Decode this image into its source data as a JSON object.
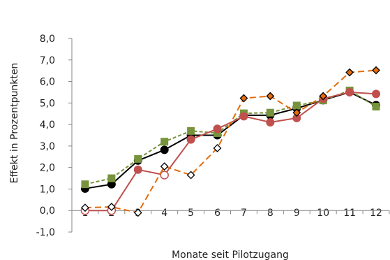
{
  "chart_data": {
    "type": "line",
    "xlabel": "Monate seit Pilotzugang",
    "ylabel": "Effekt in Prozentpunkten",
    "categories": [
      "1",
      "2",
      "3",
      "4",
      "5",
      "6",
      "7",
      "8",
      "9",
      "10",
      "11",
      "12"
    ],
    "yticks": [
      "-1,0",
      "0,0",
      "1,0",
      "2,0",
      "3,0",
      "4,0",
      "5,0",
      "6,0",
      "7,0",
      "8,0"
    ],
    "ylim": [
      -1,
      8
    ],
    "grid": false,
    "legend": "none",
    "series": [
      {
        "style": "solid",
        "marker": "filled-circle",
        "color": "#000000",
        "values": [
          1.02,
          1.22,
          2.32,
          2.82,
          3.5,
          3.5,
          4.43,
          4.43,
          4.75,
          5.13,
          5.5,
          4.9
        ]
      },
      {
        "style": "dashed",
        "marker": "filled-square",
        "color": "#77933c",
        "values": [
          1.22,
          1.5,
          2.4,
          3.2,
          3.7,
          3.6,
          4.52,
          4.55,
          4.88,
          5.12,
          5.58,
          4.83
        ]
      },
      {
        "style": "solid",
        "marker": "circle-mixed",
        "color": "#c0504d",
        "values": [
          0.0,
          0.0,
          1.9,
          1.65,
          3.3,
          3.8,
          4.38,
          4.1,
          4.3,
          5.2,
          5.5,
          5.42
        ],
        "hollow_points": [
          1,
          2,
          4
        ]
      },
      {
        "style": "long-dash",
        "marker": "diamond-mixed",
        "color": "#e46c0a",
        "values": [
          0.13,
          0.17,
          -0.1,
          2.05,
          1.65,
          2.9,
          5.22,
          5.32,
          4.55,
          5.32,
          6.42,
          6.52
        ],
        "hollow_points": [
          1,
          2,
          3,
          4,
          5,
          6
        ]
      }
    ]
  }
}
